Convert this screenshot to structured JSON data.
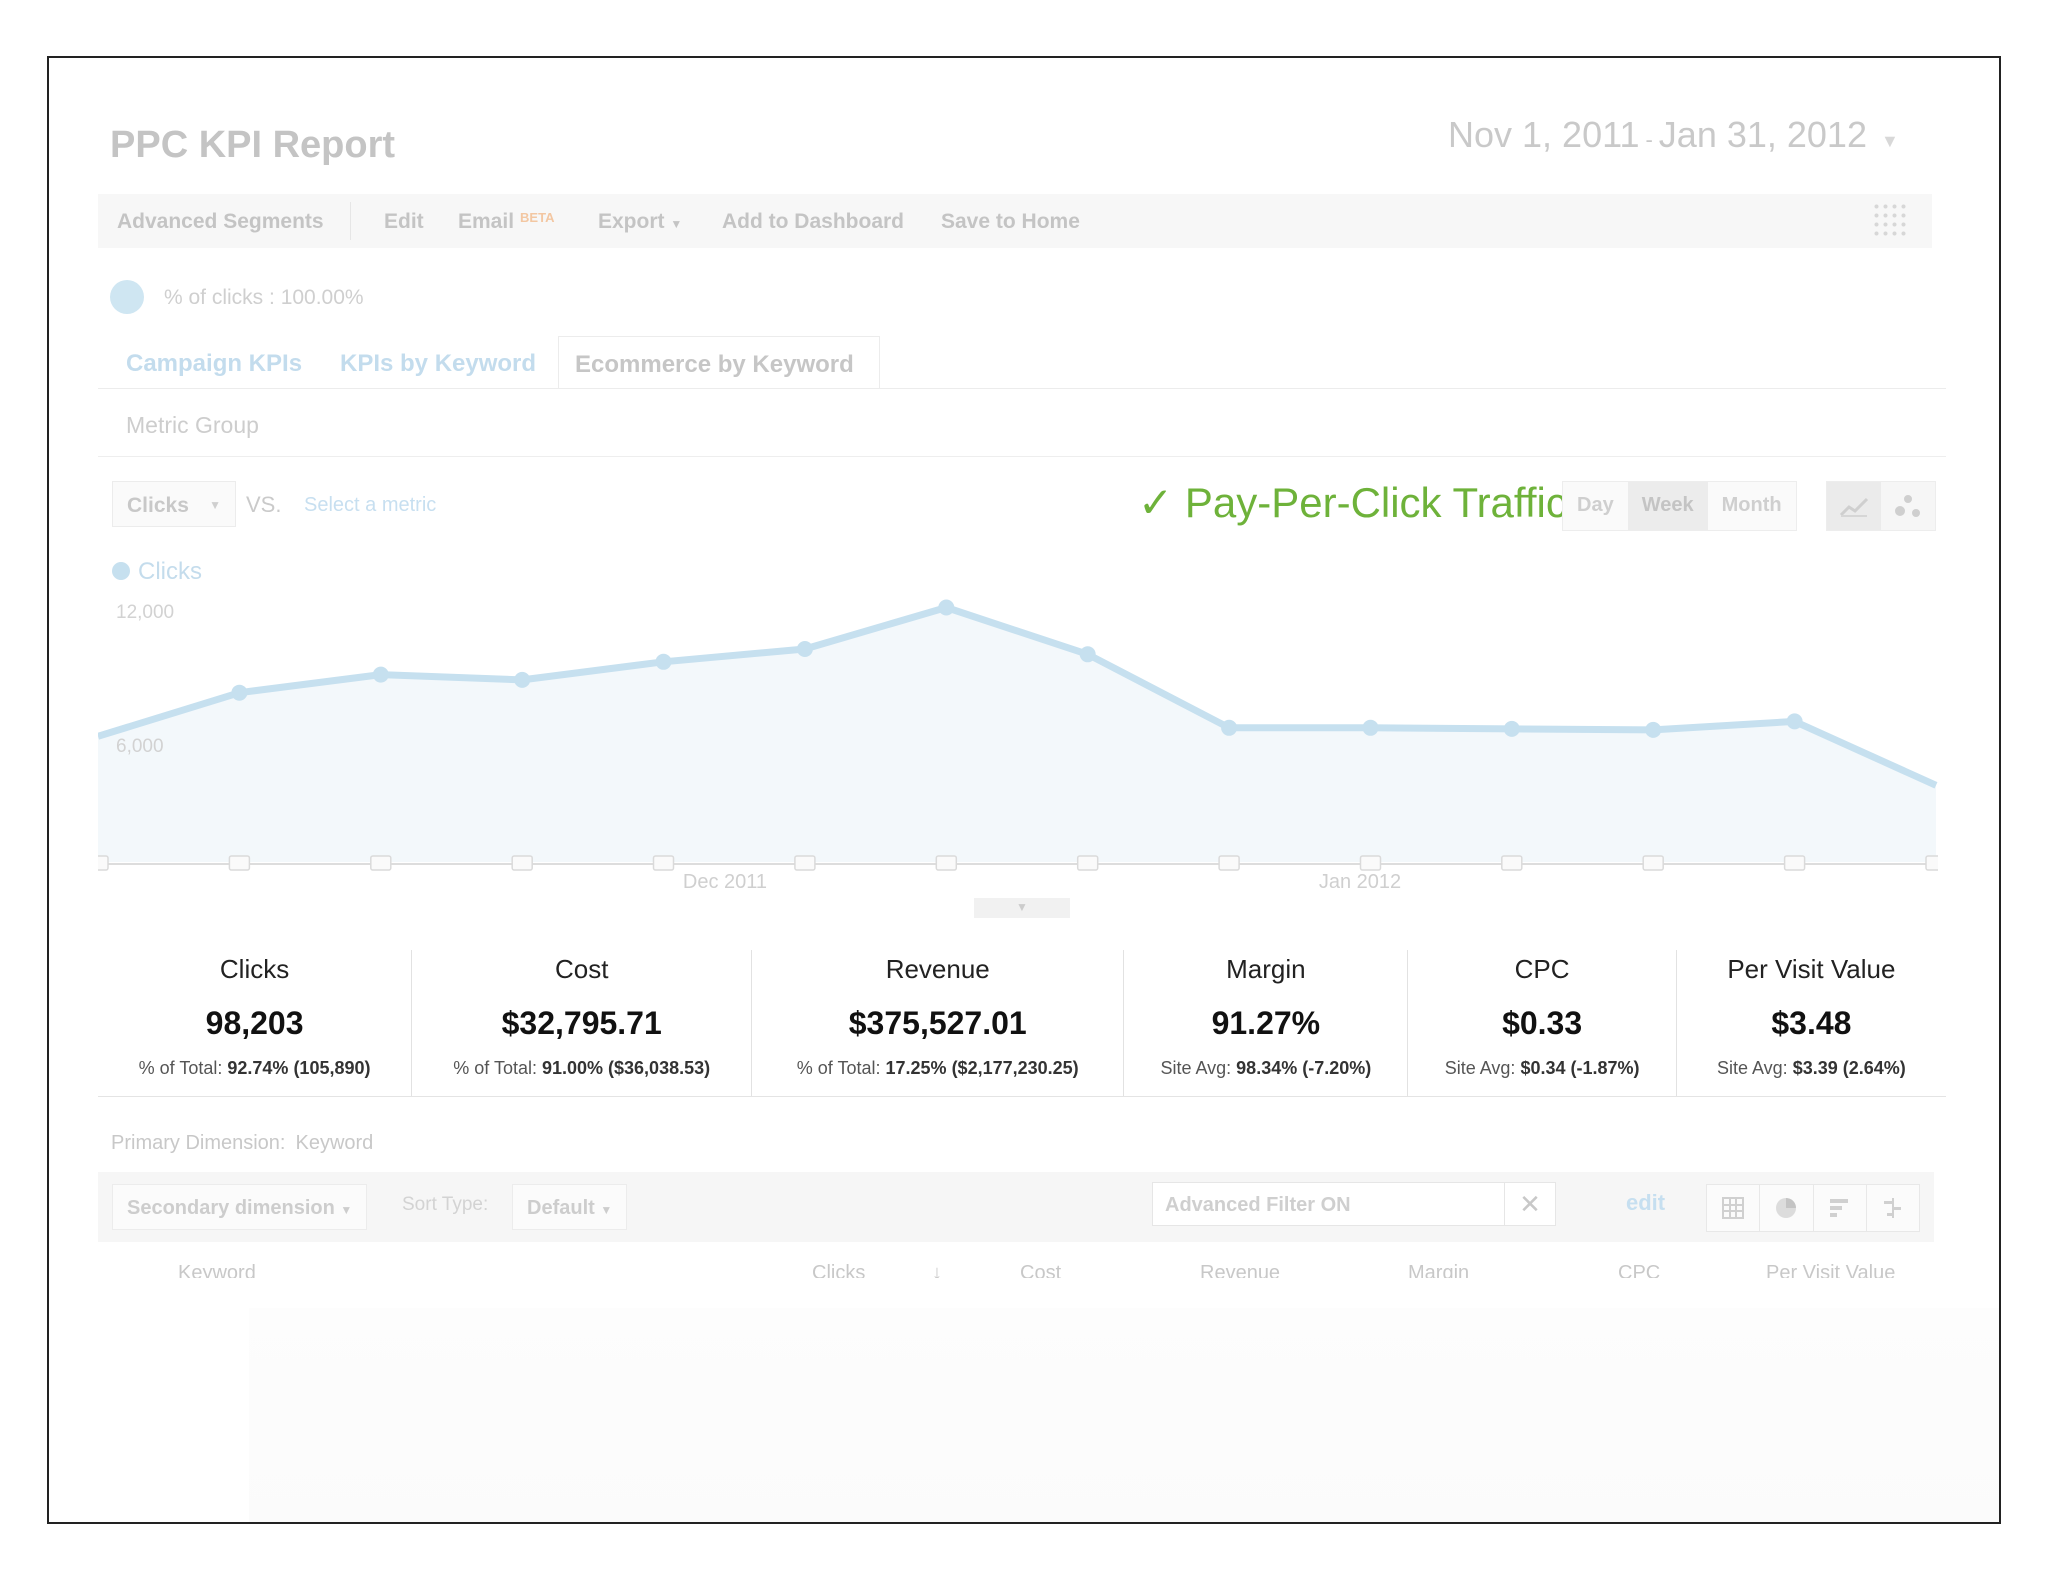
{
  "report": {
    "title": "PPC KPI Report",
    "date_start": "Nov 1, 2011",
    "date_sep": "-",
    "date_end": "Jan 31, 2012"
  },
  "toolbar": {
    "advanced_segments": "Advanced Segments",
    "edit": "Edit",
    "email": "Email",
    "email_badge": "BETA",
    "export": "Export",
    "add_to_dashboard": "Add to Dashboard",
    "save_to_home": "Save to Home"
  },
  "segment": {
    "label": "% of clicks : 100.00%"
  },
  "tabs": [
    {
      "label": "Campaign KPIs",
      "active": false
    },
    {
      "label": "KPIs by Keyword",
      "active": false
    },
    {
      "label": "Ecommerce by Keyword",
      "active": true
    }
  ],
  "metric_group": "Metric Group",
  "chart_controls": {
    "metric": "Clicks",
    "vs": "VS.",
    "select_metric": "Select a metric",
    "periods": [
      "Day",
      "Week",
      "Month"
    ],
    "active_period": "Week"
  },
  "annotation": "✓ Pay-Per-Click Traffic",
  "chart_data": {
    "type": "area",
    "series": [
      {
        "name": "Clicks",
        "color": "#c6e0ef",
        "values": [
          5900,
          7950,
          8800,
          8550,
          9400,
          10000,
          11950,
          9750,
          6300,
          6300,
          6250,
          6200,
          6600,
          3600
        ]
      }
    ],
    "y_ticks": [
      "12,000",
      "6,000"
    ],
    "ylim": [
      0,
      12300
    ],
    "x_labels": [
      "Dec 2011",
      "Jan 2012"
    ],
    "grid": false
  },
  "summary": [
    {
      "label": "Clicks",
      "value": "98,203",
      "sub_prefix": "% of Total:",
      "sub_bold": "92.74% (105,890)"
    },
    {
      "label": "Cost",
      "value": "$32,795.71",
      "sub_prefix": "% of Total:",
      "sub_bold": "91.00% ($36,038.53)"
    },
    {
      "label": "Revenue",
      "value": "$375,527.01",
      "sub_prefix": "% of Total:",
      "sub_bold": "17.25% ($2,177,230.25)"
    },
    {
      "label": "Margin",
      "value": "91.27%",
      "sub_prefix": "Site Avg:",
      "sub_bold": "98.34% (-7.20%)"
    },
    {
      "label": "CPC",
      "value": "$0.33",
      "sub_prefix": "Site Avg:",
      "sub_bold": "$0.34 (-1.87%)"
    },
    {
      "label": "Per Visit Value",
      "value": "$3.48",
      "sub_prefix": "Site Avg:",
      "sub_bold": "$3.39 (2.64%)"
    }
  ],
  "table_controls": {
    "primary_dimension_label": "Primary Dimension:",
    "primary_dimension_value": "Keyword",
    "secondary_dimension": "Secondary dimension",
    "sort_type_label": "Sort Type:",
    "sort_type_value": "Default",
    "filter_placeholder": "Advanced Filter ON",
    "edit": "edit"
  },
  "table_headers": [
    "Keyword",
    "Clicks",
    "↓",
    "Cost",
    "Revenue",
    "Margin",
    "CPC",
    "Per Visit Value"
  ]
}
